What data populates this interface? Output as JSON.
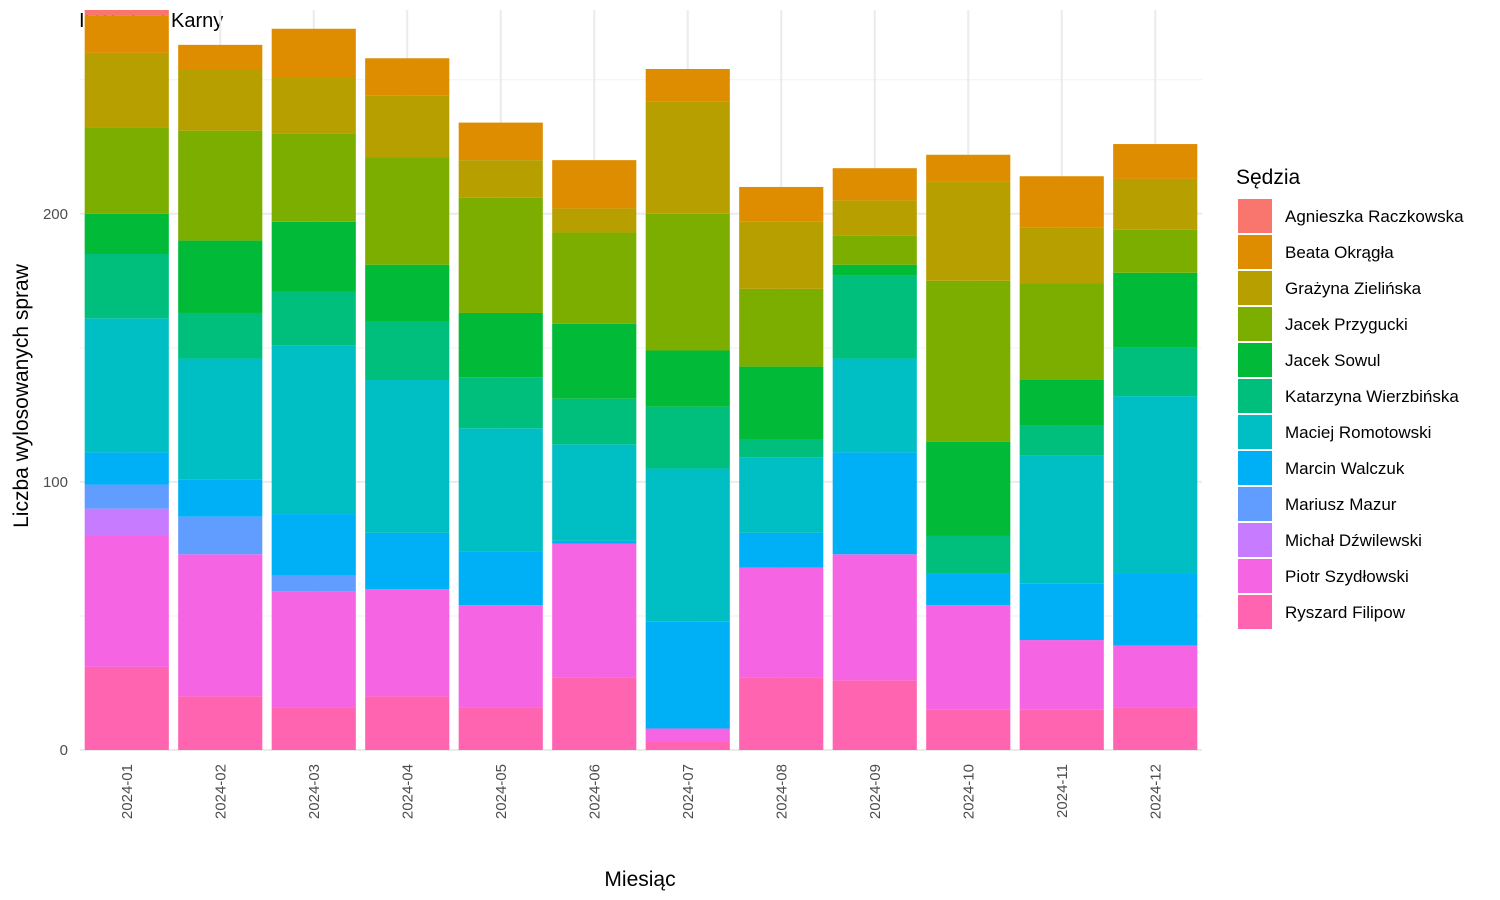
{
  "chart_data": {
    "type": "bar",
    "stacked": true,
    "title": "II Wydział Karny",
    "xlabel": "Miesiąc",
    "ylabel": "Liczba wylosowanych spraw",
    "ylim": [
      0,
      276
    ],
    "y_ticks": [
      0,
      100,
      200
    ],
    "grid": true,
    "legend_title": "Sędzia",
    "legend_position": "right",
    "categories": [
      "2024-01",
      "2024-02",
      "2024-03",
      "2024-04",
      "2024-05",
      "2024-06",
      "2024-07",
      "2024-08",
      "2024-09",
      "2024-10",
      "2024-11",
      "2024-12"
    ],
    "series": [
      {
        "name": "Ryszard Filipow",
        "color": "#FF64B0",
        "values": [
          31,
          20,
          16,
          20,
          16,
          27,
          3,
          27,
          26,
          15,
          15,
          16
        ]
      },
      {
        "name": "Piotr Szydłowski",
        "color": "#F564E3",
        "values": [
          49,
          53,
          43,
          40,
          38,
          50,
          5,
          41,
          47,
          39,
          26,
          23
        ]
      },
      {
        "name": "Michał Dźwilewski",
        "color": "#C77CFF",
        "values": [
          10,
          0,
          0,
          0,
          0,
          0,
          0,
          0,
          0,
          0,
          0,
          0
        ]
      },
      {
        "name": "Mariusz Mazur",
        "color": "#619CFF",
        "values": [
          9,
          14,
          6,
          0,
          0,
          0,
          0,
          0,
          0,
          0,
          0,
          0
        ]
      },
      {
        "name": "Marcin Walczuk",
        "color": "#00B0F6",
        "values": [
          12,
          14,
          23,
          21,
          20,
          1,
          40,
          13,
          38,
          12,
          21,
          27
        ]
      },
      {
        "name": "Maciej Romotowski",
        "color": "#00BFC4",
        "values": [
          50,
          45,
          63,
          57,
          46,
          36,
          57,
          28,
          35,
          0,
          48,
          66
        ]
      },
      {
        "name": "Katarzyna Wierzbińska",
        "color": "#00BF7D",
        "values": [
          24,
          17,
          20,
          22,
          19,
          17,
          23,
          7,
          31,
          14,
          11,
          18
        ]
      },
      {
        "name": "Jacek Sowul",
        "color": "#00BA38",
        "values": [
          15,
          27,
          26,
          21,
          24,
          28,
          21,
          27,
          4,
          35,
          17,
          28
        ]
      },
      {
        "name": "Jacek Przygucki",
        "color": "#7CAE00",
        "values": [
          32,
          41,
          33,
          40,
          43,
          34,
          51,
          29,
          11,
          60,
          36,
          16
        ]
      },
      {
        "name": "Grażyna Zielińska",
        "color": "#B79F00",
        "values": [
          28,
          23,
          21,
          23,
          14,
          9,
          42,
          25,
          13,
          37,
          21,
          19
        ]
      },
      {
        "name": "Beata Okrągła",
        "color": "#DE8C00",
        "values": [
          14,
          9,
          18,
          14,
          14,
          18,
          12,
          13,
          12,
          10,
          19,
          13
        ]
      },
      {
        "name": "Agnieszka Raczkowska",
        "color": "#F8766D",
        "values": [
          2,
          0,
          0,
          0,
          0,
          0,
          0,
          0,
          0,
          0,
          0,
          0
        ]
      }
    ],
    "legend_order": [
      "Agnieszka Raczkowska",
      "Beata Okrągła",
      "Grażyna Zielińska",
      "Jacek Przygucki",
      "Jacek Sowul",
      "Katarzyna Wierzbińska",
      "Maciej Romotowski",
      "Marcin Walczuk",
      "Mariusz Mazur",
      "Michał Dźwilewski",
      "Piotr Szydłowski",
      "Ryszard Filipow"
    ]
  }
}
